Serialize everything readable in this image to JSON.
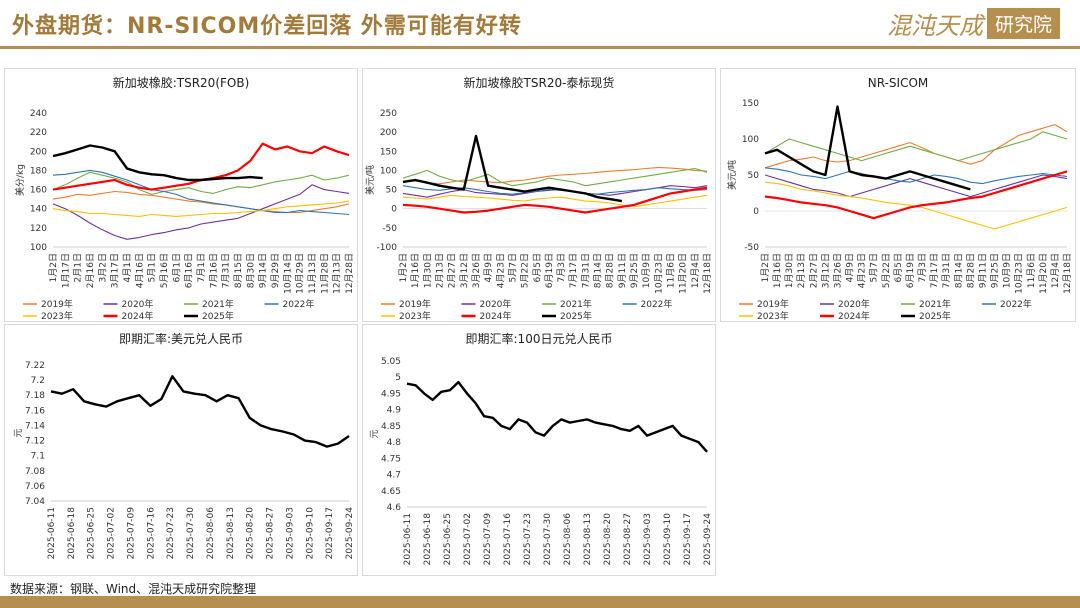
{
  "header": {
    "title": "外盘期货：NR-SICOM价差回落 外需可能有好转",
    "logo_script": "混沌天成",
    "logo_box": "研究院"
  },
  "footer": {
    "source": "数据来源：钢联、Wind、混沌天成研究院整理"
  },
  "colors": {
    "2019年": "#ed7d31",
    "2020年": "#7030a0",
    "2021年": "#70ad47",
    "2022年": "#2e75b6",
    "2023年": "#ffc000",
    "2024年": "#ff0000",
    "2025年": "#000000",
    "accent": "#b58f4e"
  },
  "chart_data": [
    {
      "id": "tsr20_fob",
      "type": "line",
      "title": "新加坡橡胶:TSR20(FOB)",
      "ylabel": "美分/kg",
      "ylim": [
        100,
        240
      ],
      "yticks": [
        100,
        120,
        140,
        160,
        180,
        200,
        220,
        240
      ],
      "x_labels": [
        "1月2日",
        "1月17日",
        "2月1日",
        "2月16日",
        "3月2日",
        "3月17日",
        "4月1日",
        "4月16日",
        "5月1日",
        "5月16日",
        "6月1日",
        "6月16日",
        "7月1日",
        "7月16日",
        "7月31日",
        "8月15日",
        "8月30日",
        "9月14日",
        "9月29日",
        "10月14日",
        "10月29日",
        "11月13日",
        "11月28日",
        "12月13日",
        "12月28日"
      ],
      "series": [
        {
          "name": "2019年",
          "values": [
            150,
            152,
            155,
            154,
            156,
            158,
            157,
            155,
            154,
            152,
            150,
            148,
            147,
            145,
            144,
            142,
            140,
            138,
            137,
            136,
            136,
            138,
            140,
            142,
            145
          ]
        },
        {
          "name": "2020年",
          "values": [
            145,
            140,
            133,
            125,
            118,
            112,
            108,
            110,
            113,
            115,
            118,
            120,
            124,
            126,
            128,
            130,
            135,
            140,
            145,
            150,
            155,
            165,
            160,
            158,
            156
          ]
        },
        {
          "name": "2021年",
          "values": [
            160,
            165,
            172,
            178,
            175,
            172,
            168,
            160,
            155,
            158,
            160,
            162,
            158,
            156,
            160,
            163,
            162,
            165,
            168,
            170,
            172,
            175,
            170,
            172,
            175
          ]
        },
        {
          "name": "2022年",
          "values": [
            175,
            176,
            178,
            180,
            178,
            174,
            170,
            165,
            160,
            158,
            155,
            150,
            148,
            146,
            144,
            142,
            140,
            138,
            136,
            136,
            138,
            137,
            136,
            135,
            134
          ]
        },
        {
          "name": "2023年",
          "values": [
            140,
            138,
            137,
            135,
            135,
            134,
            133,
            132,
            134,
            133,
            132,
            133,
            134,
            135,
            135,
            136,
            137,
            138,
            140,
            142,
            143,
            144,
            145,
            146,
            148
          ]
        },
        {
          "name": "2024年",
          "values": [
            160,
            162,
            164,
            166,
            168,
            170,
            165,
            162,
            160,
            162,
            164,
            166,
            170,
            172,
            175,
            180,
            190,
            208,
            202,
            205,
            200,
            198,
            205,
            200,
            196
          ]
        },
        {
          "name": "2025年",
          "values": [
            195,
            198,
            202,
            206,
            204,
            200,
            182,
            178,
            176,
            175,
            172,
            170,
            170,
            171,
            172,
            172,
            173,
            172
          ]
        }
      ]
    },
    {
      "id": "tsr20_thai_spot",
      "type": "line",
      "title": "新加坡橡胶TSR20-泰标现货",
      "ylabel": "美元/吨",
      "ylim": [
        -100,
        250
      ],
      "yticks": [
        -100,
        -50,
        0,
        50,
        100,
        150,
        200,
        250
      ],
      "x_labels": [
        "1月2日",
        "1月16日",
        "1月30日",
        "2月13日",
        "2月27日",
        "3月12日",
        "3月26日",
        "4月9日",
        "4月23日",
        "5月7日",
        "5月22日",
        "6月5日",
        "6月19日",
        "7月3日",
        "7月17日",
        "7月31日",
        "8月14日",
        "8月28日",
        "9月11日",
        "9月25日",
        "10月9日",
        "10月23日",
        "11月6日",
        "11月20日",
        "12月4日",
        "12月18日"
      ],
      "series": [
        {
          "name": "2019年",
          "values": [
            70,
            72,
            68,
            65,
            70,
            75,
            72,
            70,
            68,
            72,
            75,
            80,
            85,
            88,
            90,
            92,
            95,
            98,
            100,
            102,
            105,
            108,
            106,
            104,
            100,
            98
          ]
        },
        {
          "name": "2020年",
          "values": [
            40,
            35,
            30,
            38,
            45,
            50,
            42,
            40,
            38,
            35,
            40,
            45,
            48,
            50,
            45,
            40,
            38,
            35,
            40,
            45,
            50,
            55,
            60,
            58,
            55,
            60
          ]
        },
        {
          "name": "2021年",
          "values": [
            80,
            90,
            100,
            85,
            75,
            70,
            80,
            90,
            70,
            60,
            65,
            70,
            80,
            75,
            70,
            60,
            65,
            70,
            75,
            80,
            85,
            90,
            95,
            100,
            105,
            95
          ]
        },
        {
          "name": "2022年",
          "values": [
            60,
            55,
            50,
            48,
            52,
            55,
            50,
            45,
            40,
            38,
            42,
            45,
            50,
            48,
            45,
            40,
            38,
            42,
            45,
            48,
            50,
            55,
            52,
            50,
            48,
            50
          ]
        },
        {
          "name": "2023年",
          "values": [
            30,
            28,
            25,
            30,
            35,
            32,
            30,
            28,
            25,
            22,
            20,
            25,
            28,
            30,
            25,
            20,
            18,
            15,
            10,
            5,
            10,
            15,
            20,
            25,
            30,
            35
          ]
        },
        {
          "name": "2024年",
          "values": [
            10,
            8,
            5,
            0,
            -5,
            -10,
            -8,
            -5,
            0,
            5,
            10,
            8,
            5,
            0,
            -5,
            -10,
            -5,
            0,
            5,
            10,
            20,
            30,
            40,
            45,
            50,
            55
          ]
        },
        {
          "name": "2025年",
          "values": [
            70,
            75,
            68,
            60,
            55,
            50,
            190,
            60,
            55,
            50,
            45,
            50,
            55,
            50,
            45,
            40,
            30,
            25,
            20
          ]
        }
      ]
    },
    {
      "id": "nr_sicom",
      "type": "line",
      "title": "NR-SICOM",
      "ylabel": "美元/吨",
      "ylim": [
        -50,
        150
      ],
      "yticks": [
        -50,
        0,
        50,
        100,
        150
      ],
      "x_labels": [
        "1月2日",
        "1月16日",
        "1月30日",
        "2月13日",
        "2月27日",
        "3月12日",
        "3月26日",
        "4月9日",
        "4月23日",
        "5月7日",
        "5月22日",
        "6月5日",
        "6月19日",
        "7月3日",
        "7月17日",
        "7月31日",
        "8月14日",
        "8月28日",
        "9月11日",
        "9月25日",
        "10月9日",
        "10月23日",
        "11月6日",
        "11月20日",
        "12月4日",
        "12月18日"
      ],
      "series": [
        {
          "name": "2019年",
          "values": [
            60,
            65,
            70,
            72,
            75,
            70,
            68,
            70,
            75,
            80,
            85,
            90,
            95,
            88,
            80,
            75,
            70,
            65,
            70,
            85,
            95,
            105,
            110,
            115,
            120,
            110
          ]
        },
        {
          "name": "2020年",
          "values": [
            50,
            45,
            40,
            35,
            30,
            28,
            25,
            20,
            25,
            30,
            35,
            40,
            45,
            40,
            35,
            30,
            25,
            20,
            25,
            30,
            35,
            40,
            45,
            50,
            48,
            45
          ]
        },
        {
          "name": "2021年",
          "values": [
            80,
            90,
            100,
            95,
            90,
            85,
            80,
            75,
            70,
            75,
            80,
            85,
            90,
            85,
            80,
            75,
            70,
            75,
            80,
            85,
            90,
            95,
            100,
            110,
            105,
            100
          ]
        },
        {
          "name": "2022年",
          "values": [
            60,
            58,
            55,
            50,
            48,
            45,
            50,
            55,
            52,
            48,
            45,
            42,
            40,
            45,
            50,
            48,
            45,
            40,
            38,
            42,
            45,
            48,
            50,
            52,
            50,
            48
          ]
        },
        {
          "name": "2023年",
          "values": [
            40,
            38,
            35,
            30,
            28,
            25,
            22,
            20,
            18,
            15,
            12,
            10,
            8,
            5,
            0,
            -5,
            -10,
            -15,
            -20,
            -25,
            -20,
            -15,
            -10,
            -5,
            0,
            5
          ]
        },
        {
          "name": "2024年",
          "values": [
            20,
            18,
            15,
            12,
            10,
            8,
            5,
            0,
            -5,
            -10,
            -5,
            0,
            5,
            8,
            10,
            12,
            15,
            18,
            20,
            25,
            30,
            35,
            40,
            45,
            50,
            55
          ]
        },
        {
          "name": "2025年",
          "values": [
            80,
            85,
            75,
            65,
            55,
            50,
            145,
            55,
            50,
            48,
            45,
            50,
            55,
            50,
            45,
            40,
            35,
            30
          ]
        }
      ]
    },
    {
      "id": "usd_cny",
      "type": "line",
      "title": "即期汇率:美元兑人民币",
      "ylabel": "元",
      "ylim": [
        7.04,
        7.22
      ],
      "yticks": [
        7.04,
        7.06,
        7.08,
        7.1,
        7.12,
        7.14,
        7.16,
        7.18,
        7.2,
        7.22
      ],
      "x_labels": [
        "2025-06-11",
        "2025-06-18",
        "2025-06-25",
        "2025-07-02",
        "2025-07-09",
        "2025-07-16",
        "2025-07-23",
        "2025-07-30",
        "2025-08-06",
        "2025-08-13",
        "2025-08-20",
        "2025-08-27",
        "2025-09-03",
        "2025-09-10",
        "2025-09-17",
        "2025-09-24"
      ],
      "series": [
        {
          "name": "美元兑人民币",
          "values": [
            7.185,
            7.182,
            7.188,
            7.172,
            7.168,
            7.165,
            7.172,
            7.176,
            7.18,
            7.166,
            7.175,
            7.205,
            7.185,
            7.182,
            7.18,
            7.172,
            7.18,
            7.176,
            7.15,
            7.14,
            7.135,
            7.132,
            7.128,
            7.12,
            7.118,
            7.112,
            7.116,
            7.126
          ]
        }
      ]
    },
    {
      "id": "jpy100_cny",
      "type": "line",
      "title": "即期汇率:100日元兑人民币",
      "ylabel": "元",
      "ylim": [
        4.6,
        5.05
      ],
      "yticks": [
        4.6,
        4.65,
        4.7,
        4.75,
        4.8,
        4.85,
        4.9,
        4.95,
        5,
        5.05
      ],
      "x_labels": [
        "2025-06-11",
        "2025-06-18",
        "2025-06-25",
        "2025-07-02",
        "2025-07-09",
        "2025-07-16",
        "2025-07-23",
        "2025-07-30",
        "2025-08-06",
        "2025-08-13",
        "2025-08-20",
        "2025-08-27",
        "2025-09-03",
        "2025-09-10",
        "2025-09-17",
        "2025-09-24"
      ],
      "series": [
        {
          "name": "100日元兑人民币",
          "values": [
            4.98,
            4.975,
            4.95,
            4.93,
            4.955,
            4.96,
            4.985,
            4.95,
            4.92,
            4.88,
            4.875,
            4.85,
            4.84,
            4.87,
            4.86,
            4.83,
            4.82,
            4.85,
            4.87,
            4.86,
            4.865,
            4.87,
            4.86,
            4.855,
            4.85,
            4.84,
            4.835,
            4.85,
            4.82,
            4.83,
            4.84,
            4.85,
            4.82,
            4.81,
            4.8,
            4.77
          ]
        }
      ]
    }
  ]
}
